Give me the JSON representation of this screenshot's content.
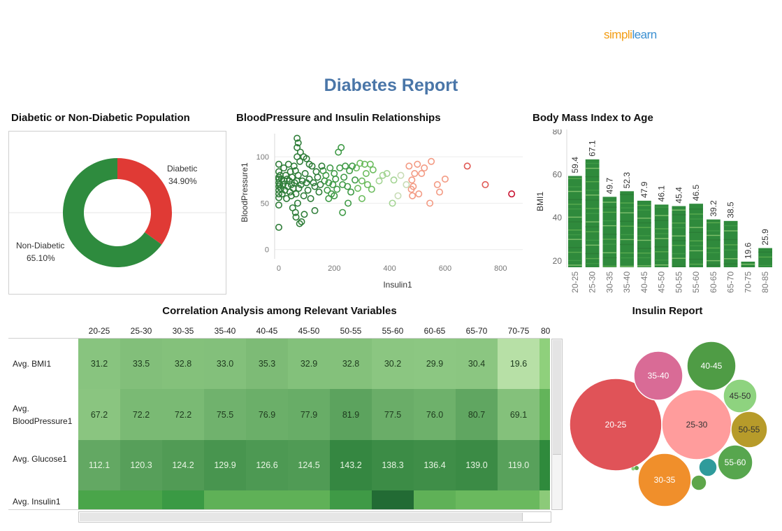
{
  "logo": {
    "part1": "simpli",
    "part2": "learn"
  },
  "report_title": "Diabetes Report",
  "titles": {
    "donut": "Diabetic or Non-Diabetic Population",
    "scatter": "BloodPressure and Insulin Relationships",
    "bmi": "Body Mass Index to Age",
    "heatmap": "Correlation Analysis among Relevant Variables",
    "bubbles": "Insulin Report"
  },
  "colors": {
    "diabetic": "#e03a35",
    "non_diabetic": "#2e8b3e",
    "title_blue": "#4a76a8"
  },
  "chart_data": [
    {
      "id": "donut",
      "type": "pie",
      "slices": [
        {
          "label": "Diabetic",
          "pct_label": "34.90%",
          "value": 34.9
        },
        {
          "label": "Non-Diabetic",
          "pct_label": "65.10%",
          "value": 65.1
        }
      ]
    },
    {
      "id": "scatter",
      "type": "scatter",
      "xlabel": "Insulin1",
      "ylabel": "BloodPressure1",
      "xlim": [
        -15,
        880
      ],
      "ylim": [
        -10,
        125
      ],
      "xticks": [
        0,
        200,
        400,
        600,
        800
      ],
      "yticks": [
        0,
        50,
        100
      ],
      "points": [
        [
          680,
          90
        ],
        [
          745,
          70
        ],
        [
          840,
          60
        ],
        [
          600,
          76
        ],
        [
          572,
          70
        ],
        [
          550,
          95
        ],
        [
          580,
          62
        ],
        [
          525,
          88
        ],
        [
          500,
          92
        ],
        [
          490,
          82
        ],
        [
          485,
          68
        ],
        [
          478,
          65
        ],
        [
          482,
          58
        ],
        [
          545,
          50
        ],
        [
          470,
          90
        ],
        [
          440,
          80
        ],
        [
          415,
          75
        ],
        [
          390,
          82
        ],
        [
          375,
          80
        ],
        [
          362,
          74
        ],
        [
          340,
          86
        ],
        [
          335,
          65
        ],
        [
          330,
          92
        ],
        [
          320,
          70
        ],
        [
          315,
          82
        ],
        [
          310,
          92
        ],
        [
          300,
          74
        ],
        [
          293,
          93
        ],
        [
          285,
          66
        ],
        [
          280,
          88
        ],
        [
          275,
          75
        ],
        [
          265,
          90
        ],
        [
          260,
          62
        ],
        [
          255,
          85
        ],
        [
          248,
          68
        ],
        [
          240,
          90
        ],
        [
          235,
          78
        ],
        [
          230,
          70
        ],
        [
          225,
          110
        ],
        [
          220,
          88
        ],
        [
          215,
          105
        ],
        [
          210,
          65
        ],
        [
          205,
          76
        ],
        [
          200,
          82
        ],
        [
          195,
          70
        ],
        [
          190,
          60
        ],
        [
          185,
          88
        ],
        [
          180,
          72
        ],
        [
          175,
          64
        ],
        [
          170,
          80
        ],
        [
          165,
          74
        ],
        [
          160,
          85
        ],
        [
          155,
          90
        ],
        [
          150,
          70
        ],
        [
          145,
          62
        ],
        [
          140,
          78
        ],
        [
          135,
          84
        ],
        [
          130,
          68
        ],
        [
          125,
          72
        ],
        [
          120,
          90
        ],
        [
          115,
          55
        ],
        [
          110,
          76
        ],
        [
          105,
          64
        ],
        [
          100,
          72
        ],
        [
          95,
          82
        ],
        [
          90,
          58
        ],
        [
          85,
          74
        ],
        [
          80,
          70
        ],
        [
          76,
          95
        ],
        [
          72,
          66
        ],
        [
          70,
          80
        ],
        [
          68,
          50
        ],
        [
          65,
          74
        ],
        [
          62,
          60
        ],
        [
          60,
          85
        ],
        [
          57,
          72
        ],
        [
          55,
          90
        ],
        [
          52,
          66
        ],
        [
          50,
          45
        ],
        [
          48,
          78
        ],
        [
          45,
          70
        ],
        [
          42,
          84
        ],
        [
          40,
          62
        ],
        [
          38,
          74
        ],
        [
          35,
          92
        ],
        [
          32,
          68
        ],
        [
          30,
          76
        ],
        [
          28,
          55
        ],
        [
          25,
          80
        ],
        [
          22,
          64
        ],
        [
          20,
          74
        ],
        [
          18,
          88
        ],
        [
          15,
          70
        ],
        [
          12,
          60
        ],
        [
          10,
          76
        ],
        [
          8,
          66
        ],
        [
          5,
          80
        ],
        [
          3,
          70
        ],
        [
          0,
          72
        ],
        [
          0,
          64
        ],
        [
          0,
          56
        ],
        [
          0,
          48
        ],
        [
          0,
          24
        ],
        [
          0,
          84
        ],
        [
          0,
          92
        ],
        [
          0,
          78
        ],
        [
          0,
          68
        ],
        [
          0,
          60
        ],
        [
          0,
          76
        ],
        [
          66,
          120
        ],
        [
          66,
          110
        ],
        [
          66,
          100
        ],
        [
          70,
          115
        ],
        [
          78,
          105
        ],
        [
          90,
          100
        ],
        [
          100,
          98
        ],
        [
          110,
          92
        ],
        [
          82,
          30
        ],
        [
          75,
          28
        ],
        [
          130,
          42
        ],
        [
          60,
          40
        ],
        [
          230,
          40
        ],
        [
          300,
          55
        ],
        [
          62,
          35
        ],
        [
          92,
          38
        ],
        [
          180,
          55
        ],
        [
          45,
          58
        ],
        [
          200,
          58
        ],
        [
          250,
          50
        ],
        [
          480,
          75
        ],
        [
          505,
          60
        ],
        [
          515,
          82
        ],
        [
          460,
          70
        ],
        [
          430,
          58
        ],
        [
          410,
          50
        ]
      ]
    },
    {
      "id": "bmi",
      "type": "bar",
      "ylabel": "BMI1",
      "ylim": [
        17,
        81
      ],
      "yticks": [
        20,
        40,
        60,
        80
      ],
      "categories": [
        "20-25",
        "25-30",
        "30-35",
        "35-40",
        "40-45",
        "45-50",
        "50-55",
        "55-60",
        "60-65",
        "65-70",
        "70-75",
        "80-85"
      ],
      "values": [
        59.4,
        67.1,
        49.7,
        52.3,
        47.9,
        46.1,
        45.4,
        46.5,
        39.2,
        38.5,
        19.6,
        25.9
      ]
    },
    {
      "id": "heatmap",
      "type": "heatmap",
      "columns": [
        "20-25",
        "25-30",
        "30-35",
        "35-40",
        "40-45",
        "45-50",
        "50-55",
        "55-60",
        "60-65",
        "65-70",
        "70-75",
        "80"
      ],
      "rows": [
        {
          "label": "Avg. BMI1",
          "values": [
            31.2,
            33.5,
            32.8,
            33.0,
            35.3,
            32.9,
            32.8,
            30.2,
            29.9,
            30.4,
            19.6,
            null
          ]
        },
        {
          "label": "Avg. BloodPressure1",
          "values": [
            67.2,
            72.2,
            72.2,
            75.5,
            76.9,
            77.9,
            81.9,
            77.5,
            76.0,
            80.7,
            69.1,
            null
          ]
        },
        {
          "label": "Avg. Glucose1",
          "values": [
            112.1,
            120.3,
            124.2,
            129.9,
            126.6,
            124.5,
            143.2,
            138.3,
            136.4,
            139.0,
            119.0,
            null
          ]
        },
        {
          "label": "Avg. Insulin1",
          "values": [
            null,
            null,
            null,
            null,
            null,
            null,
            null,
            null,
            null,
            null,
            null,
            null
          ]
        }
      ]
    },
    {
      "id": "bubbles",
      "type": "bubble",
      "items": [
        {
          "label": "20-25",
          "color": "#e05358"
        },
        {
          "label": "25-30",
          "color": "#ff9c9c"
        },
        {
          "label": "35-40",
          "color": "#d96b96"
        },
        {
          "label": "40-45",
          "color": "#4f9c45"
        },
        {
          "label": "45-50",
          "color": "#8ed37f"
        },
        {
          "label": "50-55",
          "color": "#b79b2a"
        },
        {
          "label": "55-60",
          "color": "#57a64e"
        },
        {
          "label": "30-35",
          "color": "#f08f2b"
        },
        {
          "label": "",
          "color": "#2f9b9b"
        },
        {
          "label": "",
          "color": "#5ea64a"
        }
      ]
    }
  ]
}
